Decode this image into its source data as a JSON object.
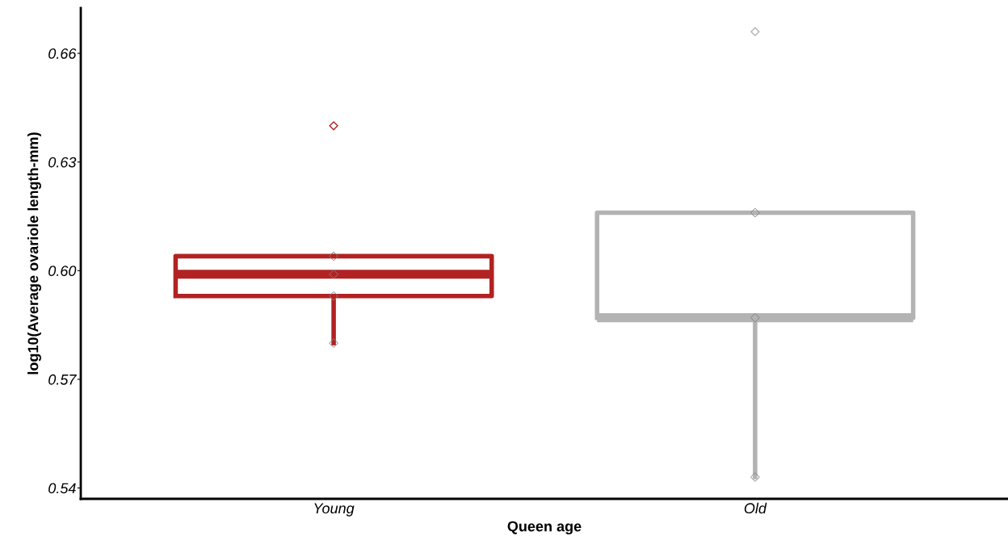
{
  "chart_data": {
    "type": "box",
    "xlabel": "Queen age",
    "ylabel": "log10(Average ovariole length-mm)",
    "categories": [
      "Young",
      "Old"
    ],
    "ylim": [
      0.537,
      0.6725
    ],
    "yticks": [
      {
        "value": 0.54,
        "label": "0.54"
      },
      {
        "value": 0.57,
        "label": "0.57"
      },
      {
        "value": 0.6,
        "label": "0.60"
      },
      {
        "value": 0.63,
        "label": "0.63"
      },
      {
        "value": 0.66,
        "label": "0.66"
      }
    ],
    "grid": false,
    "series": [
      {
        "type": "box",
        "colors": [
          "#b22222",
          "#b3b3b3"
        ],
        "boxes": [
          {
            "low": 0.58,
            "q1": 0.593,
            "median": 0.599,
            "q3": 0.604,
            "high": 0.604,
            "outliers": [
              0.64
            ]
          },
          {
            "low": 0.543,
            "q1": 0.587,
            "median": 0.587,
            "q3": 0.616,
            "high": 0.616,
            "outliers": [
              0.666
            ]
          }
        ]
      },
      {
        "type": "scatter",
        "color": "#808080",
        "marker": "diamond",
        "x": [
          "Young",
          "Young",
          "Young",
          "Young",
          "Old",
          "Old",
          "Old"
        ],
        "values": [
          0.604,
          0.599,
          0.593,
          0.58,
          0.616,
          0.587,
          0.543
        ]
      }
    ]
  }
}
